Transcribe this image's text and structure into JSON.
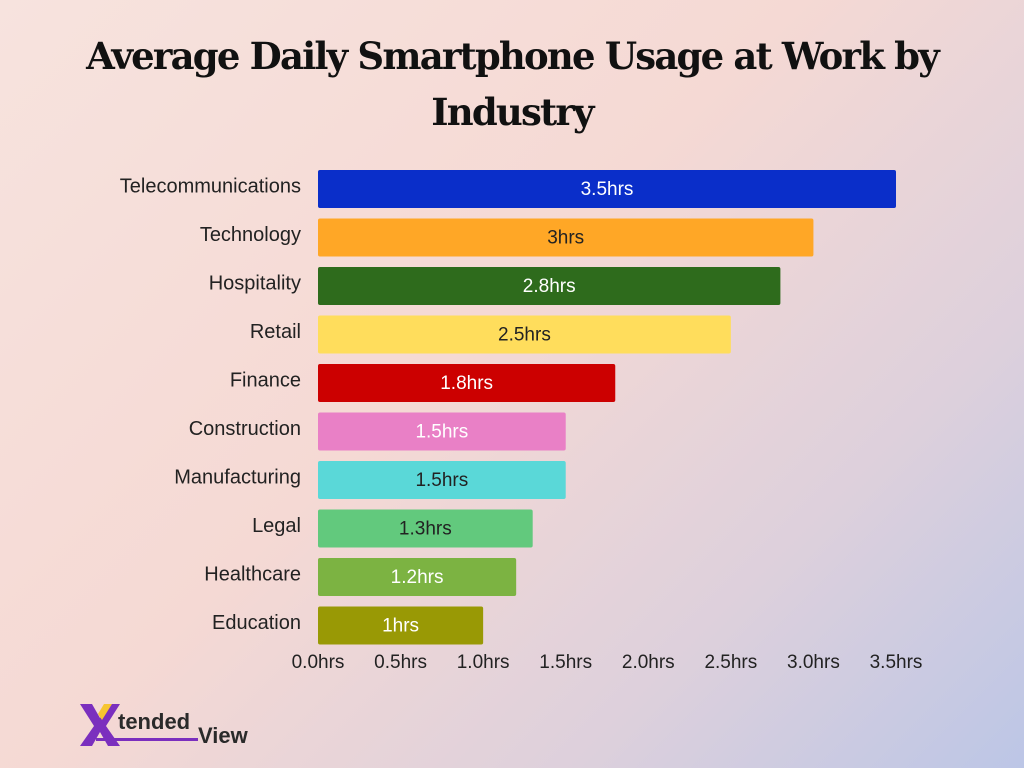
{
  "title": "Average Daily Smartphone Usage at Work by Industry",
  "chart_data": {
    "type": "bar",
    "orientation": "horizontal",
    "title": "Average Daily Smartphone Usage at Work by Industry",
    "xlabel": "",
    "ylabel": "",
    "xlim": [
      0,
      3.5
    ],
    "x_ticks": [
      0,
      0.5,
      1.0,
      1.5,
      2.0,
      2.5,
      3.0,
      3.5
    ],
    "x_tick_labels": [
      "0.0hrs",
      "0.5hrs",
      "1.0hrs",
      "1.5hrs",
      "2.0hrs",
      "2.5hrs",
      "3.0hrs",
      "3.5hrs"
    ],
    "grid": false,
    "legend": "none",
    "categories": [
      "Telecommunications",
      "Technology",
      "Hospitality",
      "Retail",
      "Finance",
      "Construction",
      "Manufacturing",
      "Legal",
      "Healthcare",
      "Education"
    ],
    "values": [
      3.5,
      3,
      2.8,
      2.5,
      1.8,
      1.5,
      1.5,
      1.3,
      1.2,
      1
    ],
    "data_labels": [
      "3.5hrs",
      "3hrs",
      "2.8hrs",
      "2.5hrs",
      "1.8hrs",
      "1.5hrs",
      "1.5hrs",
      "1.3hrs",
      "1.2hrs",
      "1hrs"
    ],
    "colors": [
      "#0a2ec9",
      "#ffa726",
      "#2e6b1c",
      "#ffdd5c",
      "#cc0000",
      "#e980c6",
      "#5ad8d8",
      "#62c97d",
      "#7cb342",
      "#999905"
    ],
    "label_colors": [
      "#ffffff",
      "#222222",
      "#ffffff",
      "#222222",
      "#ffffff",
      "#ffffff",
      "#222222",
      "#222222",
      "#ffffff",
      "#ffffff"
    ]
  },
  "logo": {
    "mark": "X",
    "text_1": "tended",
    "text_2": "View",
    "colors": {
      "mark_purple": "#7b2fbe",
      "mark_yellow": "#f7c531",
      "text": "#2a2a2a",
      "accent": "#7b2fbe"
    }
  }
}
